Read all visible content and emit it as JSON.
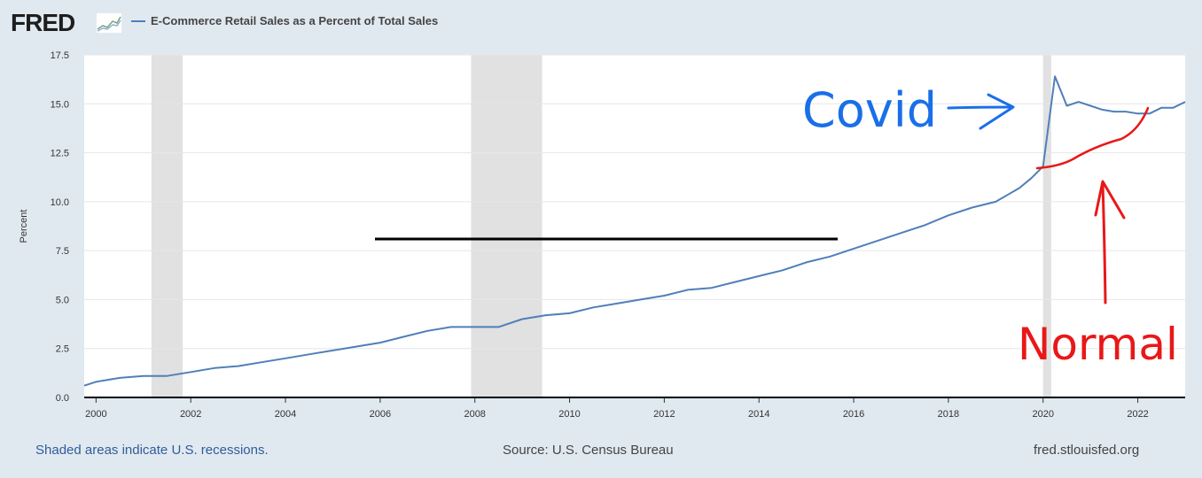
{
  "header": {
    "logo_text": "FRED",
    "legend_label": "E-Commerce Retail Sales as a Percent of Total Sales"
  },
  "footer": {
    "recession_note": "Shaded areas indicate U.S. recessions.",
    "source": "Source: U.S. Census Bureau",
    "site": "fred.stlouisfed.org"
  },
  "annotations": {
    "covid_label": "Covid",
    "normal_label": "Normal"
  },
  "colors": {
    "series": "#4f7fb8",
    "recession": "#e1e1e1",
    "covid_ink": "#1a6fe8",
    "normal_ink": "#e81818"
  },
  "chart_data": {
    "type": "line",
    "title": "E-Commerce Retail Sales as a Percent of Total Sales",
    "ylabel": "Percent",
    "xlabel": "",
    "xlim": [
      1999.75,
      2023.0
    ],
    "ylim": [
      0,
      17.5
    ],
    "yticks": [
      "0.0",
      "2.5",
      "5.0",
      "7.5",
      "10.0",
      "12.5",
      "15.0",
      "17.5"
    ],
    "xticks": [
      "2000",
      "2002",
      "2004",
      "2006",
      "2008",
      "2010",
      "2012",
      "2014",
      "2016",
      "2018",
      "2020",
      "2022"
    ],
    "grid": true,
    "recessions": [
      [
        2001.17,
        2001.83
      ],
      [
        2007.92,
        2009.42
      ],
      [
        2020.0,
        2020.17
      ]
    ],
    "series": [
      {
        "name": "E-Commerce Retail Sales as a Percent of Total Sales",
        "x": [
          1999.75,
          2000.0,
          2000.5,
          2001.0,
          2001.5,
          2002.0,
          2002.5,
          2003.0,
          2003.5,
          2004.0,
          2004.5,
          2005.0,
          2005.5,
          2006.0,
          2006.5,
          2007.0,
          2007.5,
          2008.0,
          2008.5,
          2009.0,
          2009.5,
          2010.0,
          2010.5,
          2011.0,
          2011.5,
          2012.0,
          2012.5,
          2013.0,
          2013.5,
          2014.0,
          2014.5,
          2015.0,
          2015.5,
          2016.0,
          2016.5,
          2017.0,
          2017.5,
          2018.0,
          2018.5,
          2019.0,
          2019.5,
          2019.75,
          2020.0,
          2020.25,
          2020.5,
          2020.75,
          2021.0,
          2021.25,
          2021.5,
          2021.75,
          2022.0,
          2022.25,
          2022.5,
          2022.75,
          2023.0
        ],
        "y": [
          0.6,
          0.8,
          1.0,
          1.1,
          1.1,
          1.3,
          1.5,
          1.6,
          1.8,
          2.0,
          2.2,
          2.4,
          2.6,
          2.8,
          3.1,
          3.4,
          3.6,
          3.6,
          3.6,
          4.0,
          4.2,
          4.3,
          4.6,
          4.8,
          5.0,
          5.2,
          5.5,
          5.6,
          5.9,
          6.2,
          6.5,
          6.9,
          7.2,
          7.6,
          8.0,
          8.4,
          8.8,
          9.3,
          9.7,
          10.0,
          10.7,
          11.2,
          11.8,
          16.4,
          14.9,
          15.1,
          14.9,
          14.7,
          14.6,
          14.6,
          14.5,
          14.5,
          14.8,
          14.8,
          15.1
        ]
      }
    ]
  }
}
